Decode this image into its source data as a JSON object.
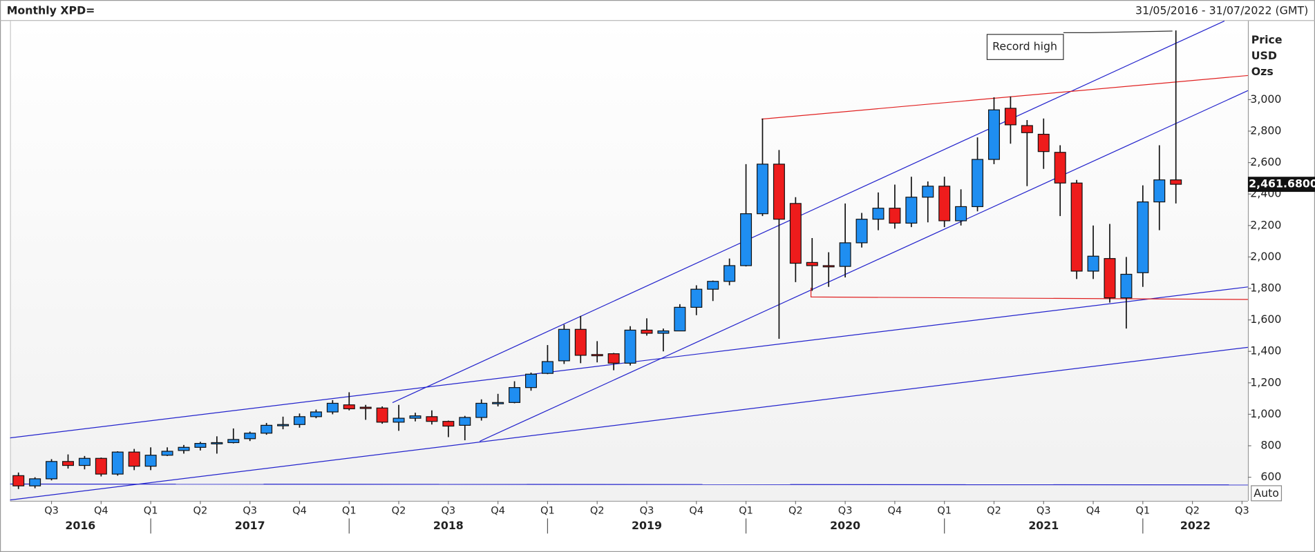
{
  "chart_data": {
    "type": "candlestick",
    "title": "Monthly XPD=",
    "date_range": "31/05/2016 - 31/07/2022 (GMT)",
    "y_axis_label": [
      "Price",
      "USD",
      "Ozs"
    ],
    "button": "Auto",
    "annotation": "Record high",
    "up_color": "#1f8ef1",
    "down_color": "#ee1c1c",
    "xlim": [
      "2016-05",
      "2022-07"
    ],
    "ylim": [
      450,
      3500
    ],
    "yticks": [
      600,
      800,
      {
        "value": 1000,
        "label": "1,000"
      },
      {
        "value": 1200,
        "label": "1,200"
      },
      {
        "value": 1400,
        "label": "1,400"
      },
      {
        "value": 1600,
        "label": "1,600"
      },
      {
        "value": 1800,
        "label": "1,800"
      },
      {
        "value": 2000,
        "label": "2,000"
      },
      {
        "value": 2200,
        "label": "2,200"
      },
      {
        "value": 2400,
        "label": "2,400"
      },
      {
        "value": 2600,
        "label": "2,600"
      },
      {
        "value": 2800,
        "label": "2,800"
      },
      {
        "value": 3000,
        "label": "3,000"
      }
    ],
    "xticks": [
      {
        "value": "2016-07",
        "label": "Q3"
      },
      {
        "value": "2016-10",
        "label": "Q4"
      },
      {
        "value": "2017-01",
        "label": "Q1"
      },
      {
        "value": "2017-04",
        "label": "Q2"
      },
      {
        "value": "2017-07",
        "label": "Q3"
      },
      {
        "value": "2017-10",
        "label": "Q4"
      },
      {
        "value": "2018-01",
        "label": "Q1"
      },
      {
        "value": "2018-04",
        "label": "Q2"
      },
      {
        "value": "2018-07",
        "label": "Q3"
      },
      {
        "value": "2018-10",
        "label": "Q4"
      },
      {
        "value": "2019-01",
        "label": "Q1"
      },
      {
        "value": "2019-04",
        "label": "Q2"
      },
      {
        "value": "2019-07",
        "label": "Q3"
      },
      {
        "value": "2019-10",
        "label": "Q4"
      },
      {
        "value": "2020-01",
        "label": "Q1"
      },
      {
        "value": "2020-04",
        "label": "Q2"
      },
      {
        "value": "2020-07",
        "label": "Q3"
      },
      {
        "value": "2020-10",
        "label": "Q4"
      },
      {
        "value": "2021-01",
        "label": "Q1"
      },
      {
        "value": "2021-04",
        "label": "Q2"
      },
      {
        "value": "2021-07",
        "label": "Q3"
      },
      {
        "value": "2021-10",
        "label": "Q4"
      },
      {
        "value": "2022-01",
        "label": "Q1"
      },
      {
        "value": "2022-04",
        "label": "Q2"
      },
      {
        "value": "2022-07",
        "label": "Q3"
      }
    ],
    "years": [
      2016,
      2017,
      2018,
      2019,
      2020,
      2021,
      2022
    ],
    "last_price": {
      "value": 2461.68,
      "label": "2,461.6800"
    },
    "x": [
      "2016-05",
      "2016-06",
      "2016-07",
      "2016-08",
      "2016-09",
      "2016-10",
      "2016-11",
      "2016-12",
      "2017-01",
      "2017-02",
      "2017-03",
      "2017-04",
      "2017-05",
      "2017-06",
      "2017-07",
      "2017-08",
      "2017-09",
      "2017-10",
      "2017-11",
      "2017-12",
      "2018-01",
      "2018-02",
      "2018-03",
      "2018-04",
      "2018-05",
      "2018-06",
      "2018-07",
      "2018-08",
      "2018-09",
      "2018-10",
      "2018-11",
      "2018-12",
      "2019-01",
      "2019-02",
      "2019-03",
      "2019-04",
      "2019-05",
      "2019-06",
      "2019-07",
      "2019-08",
      "2019-09",
      "2019-10",
      "2019-11",
      "2019-12",
      "2020-01",
      "2020-02",
      "2020-03",
      "2020-04",
      "2020-05",
      "2020-06",
      "2020-07",
      "2020-08",
      "2020-09",
      "2020-10",
      "2020-11",
      "2020-12",
      "2021-01",
      "2021-02",
      "2021-03",
      "2021-04",
      "2021-05",
      "2021-06",
      "2021-07",
      "2021-08",
      "2021-09",
      "2021-10",
      "2021-11",
      "2021-12",
      "2022-01",
      "2022-02",
      "2022-03"
    ],
    "open": [
      610,
      545,
      590,
      700,
      675,
      720,
      620,
      760,
      670,
      740,
      770,
      790,
      815,
      820,
      845,
      880,
      930,
      935,
      985,
      1015,
      1060,
      1045,
      1040,
      950,
      975,
      985,
      955,
      930,
      980,
      1070,
      1075,
      1170,
      1260,
      1340,
      1540,
      1380,
      1385,
      1325,
      1535,
      1515,
      1530,
      1680,
      1795,
      1845,
      1945,
      2275,
      2590,
      2340,
      1965,
      1945,
      1940,
      2090,
      2240,
      2310,
      2215,
      2380,
      2450,
      2230,
      2320,
      2620,
      2945,
      2835,
      2780,
      2665,
      2470,
      1910,
      1990,
      1740,
      1900,
      2350,
      2490
    ],
    "high": [
      630,
      600,
      715,
      745,
      735,
      725,
      765,
      780,
      790,
      790,
      805,
      825,
      860,
      910,
      890,
      945,
      985,
      1005,
      1030,
      1090,
      1140,
      1060,
      1050,
      1060,
      1010,
      1025,
      960,
      990,
      1095,
      1130,
      1210,
      1265,
      1440,
      1570,
      1625,
      1465,
      1390,
      1560,
      1610,
      1545,
      1700,
      1820,
      1850,
      1990,
      2590,
      2880,
      2680,
      2380,
      2120,
      2030,
      2340,
      2280,
      2410,
      2460,
      2510,
      2480,
      2510,
      2430,
      2760,
      3015,
      3020,
      2870,
      2880,
      2710,
      2490,
      2200,
      2210,
      2000,
      2455,
      2710,
      3440
    ],
    "low": [
      525,
      530,
      580,
      655,
      650,
      605,
      610,
      645,
      645,
      735,
      750,
      770,
      750,
      815,
      830,
      870,
      905,
      915,
      975,
      1000,
      1025,
      965,
      940,
      895,
      955,
      935,
      855,
      835,
      960,
      1050,
      1070,
      1150,
      1255,
      1320,
      1325,
      1330,
      1280,
      1310,
      1500,
      1400,
      1530,
      1630,
      1720,
      1820,
      1940,
      2260,
      1480,
      1840,
      1785,
      1810,
      1870,
      2060,
      2170,
      2180,
      2190,
      2220,
      2190,
      2200,
      2290,
      2590,
      2720,
      2450,
      2560,
      2260,
      1860,
      1860,
      1710,
      1545,
      1810,
      2170,
      2340
    ],
    "close": [
      545,
      590,
      700,
      675,
      720,
      620,
      760,
      670,
      740,
      765,
      790,
      815,
      820,
      840,
      880,
      930,
      935,
      985,
      1015,
      1070,
      1035,
      1040,
      950,
      975,
      990,
      955,
      925,
      980,
      1070,
      1075,
      1170,
      1255,
      1335,
      1540,
      1375,
      1375,
      1325,
      1535,
      1515,
      1530,
      1680,
      1795,
      1845,
      1945,
      2275,
      2590,
      2240,
      1960,
      1945,
      1940,
      2090,
      2240,
      2310,
      2215,
      2380,
      2450,
      2230,
      2320,
      2620,
      2935,
      2840,
      2790,
      2670,
      2470,
      1910,
      2005,
      1740,
      1890,
      2350,
      2490,
      2462
    ]
  }
}
